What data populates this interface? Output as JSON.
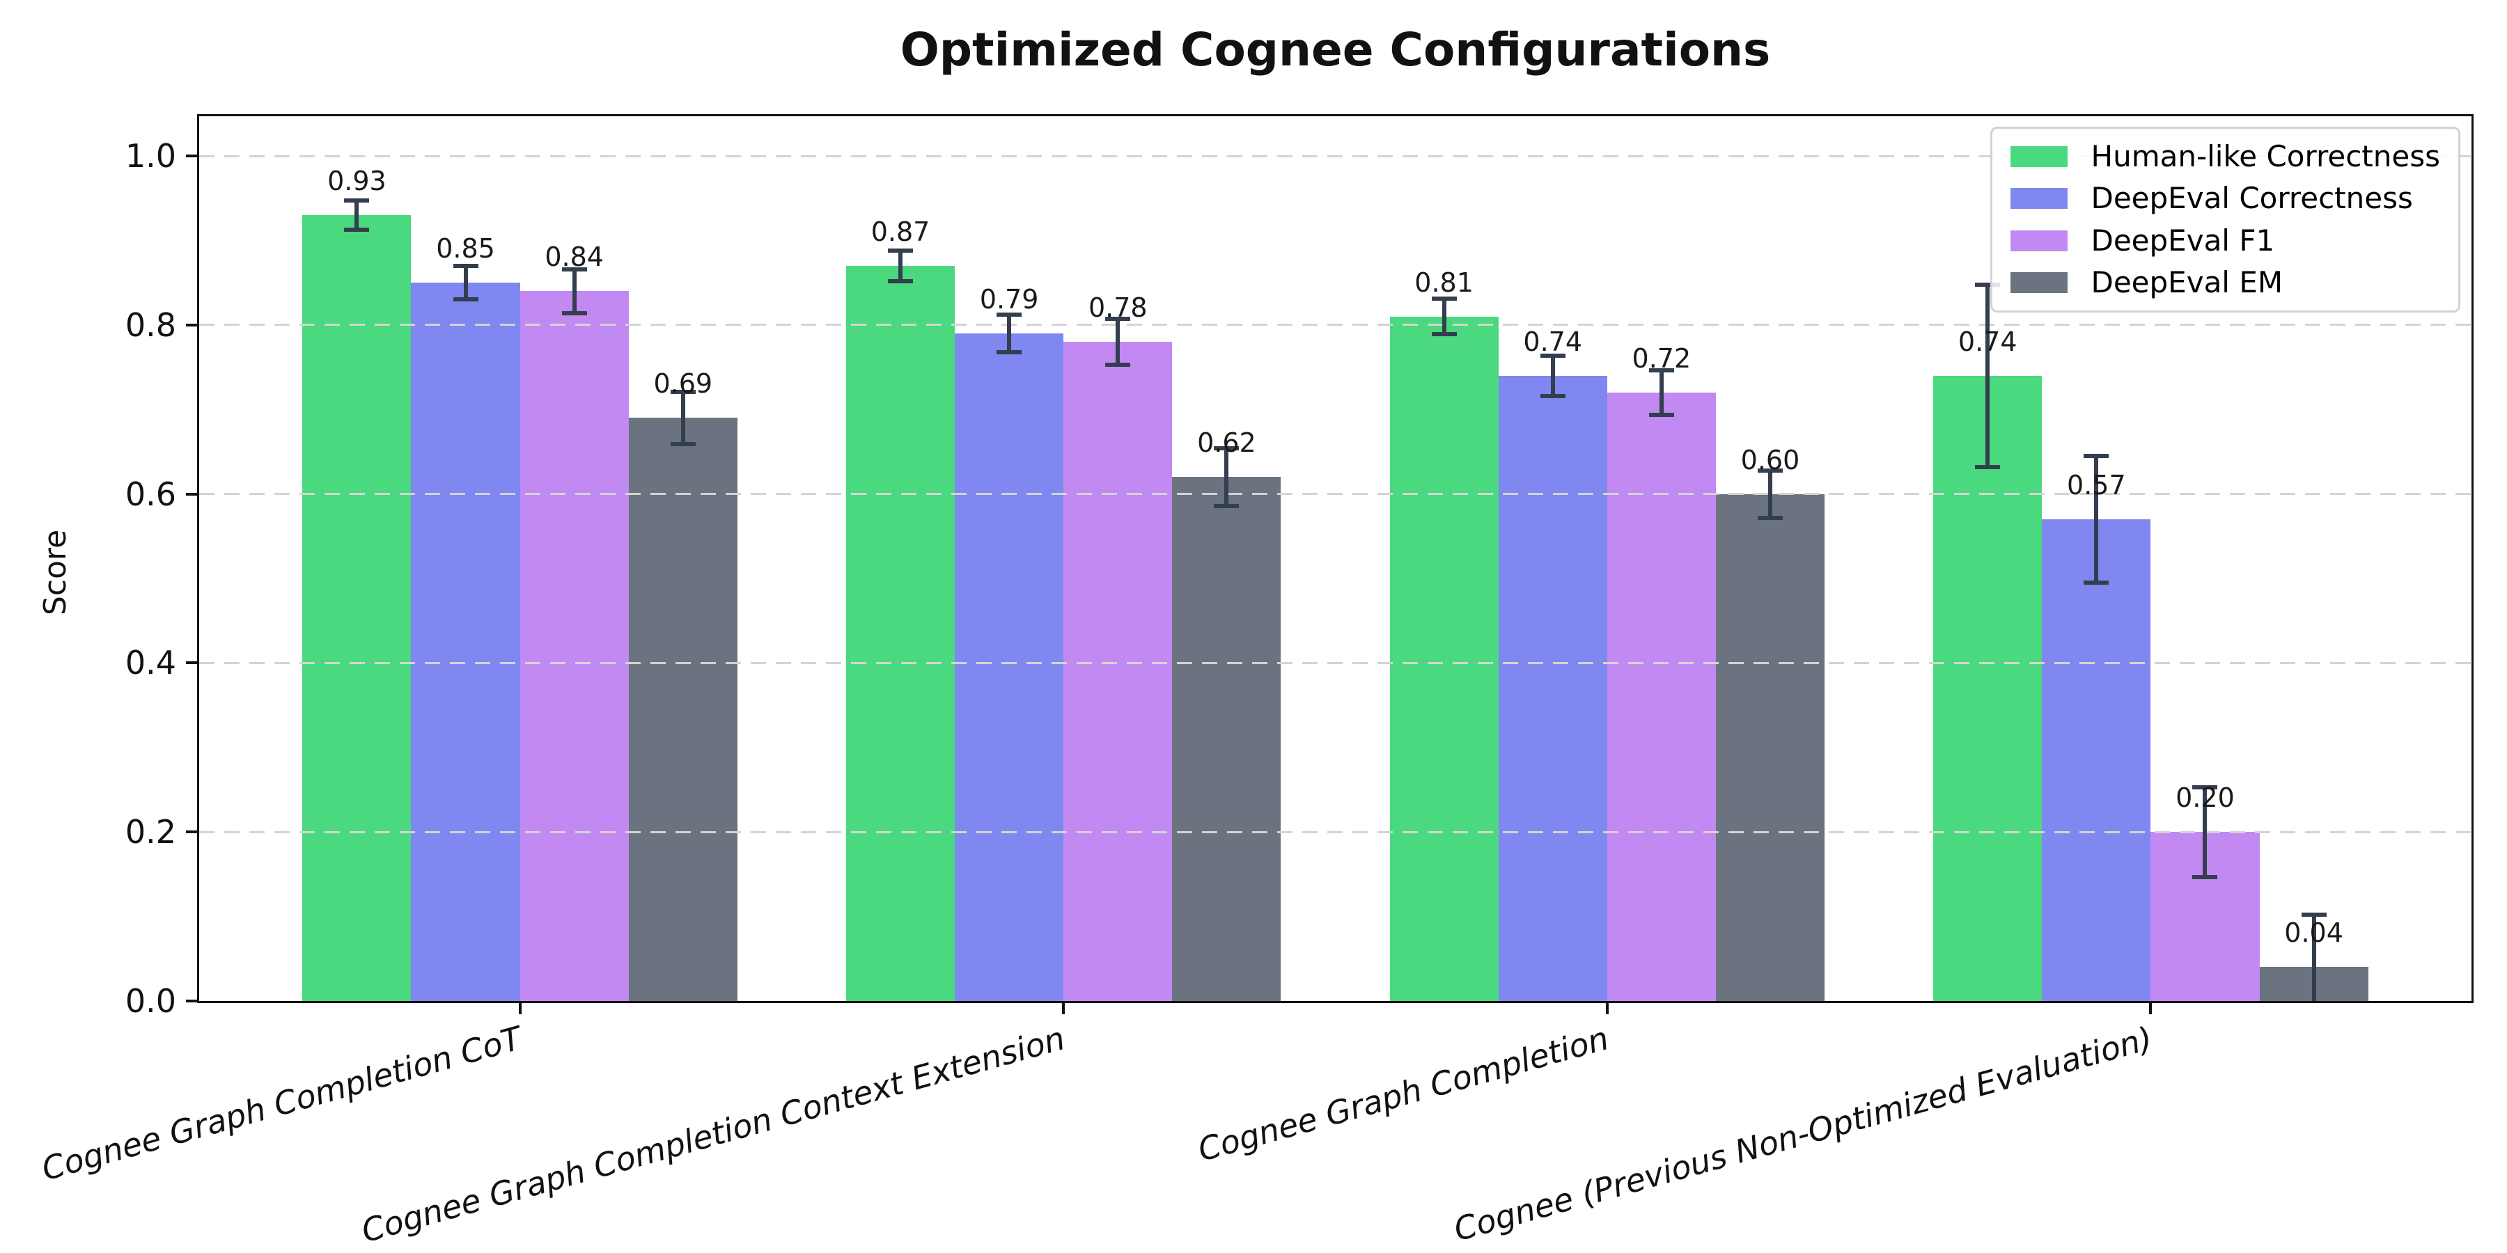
{
  "chart_data": {
    "type": "bar",
    "title": "Optimized Cognee Configurations",
    "ylabel": "Score",
    "xlabel": "",
    "categories": [
      "Cognee Graph Completion CoT",
      "Cognee Graph Completion Context Extension",
      "Cognee Graph Completion",
      "Cognee (Previous Non-Optimized Evaluation)"
    ],
    "series": [
      {
        "name": "Human-like Correctness",
        "color": "#4ad97e",
        "values": [
          0.93,
          0.87,
          0.81,
          0.74
        ],
        "errors": [
          0.017,
          0.018,
          0.021,
          0.108
        ]
      },
      {
        "name": "DeepEval Correctness",
        "color": "#7e88f0",
        "values": [
          0.85,
          0.79,
          0.74,
          0.57
        ],
        "errors": [
          0.02,
          0.022,
          0.024,
          0.075
        ]
      },
      {
        "name": "DeepEval F1",
        "color": "#c289f3",
        "values": [
          0.84,
          0.78,
          0.72,
          0.2
        ],
        "errors": [
          0.026,
          0.027,
          0.026,
          0.053
        ]
      },
      {
        "name": "DeepEval EM",
        "color": "#6b7380",
        "values": [
          0.69,
          0.62,
          0.6,
          0.04
        ],
        "errors": [
          0.031,
          0.034,
          0.028,
          0.062
        ]
      }
    ],
    "value_label_format": "%.2f",
    "ylim": [
      0,
      1.047
    ],
    "yticks": [
      {
        "v": 0.0,
        "label": "0.0"
      },
      {
        "v": 0.2,
        "label": "0.2"
      },
      {
        "v": 0.4,
        "label": "0.4"
      },
      {
        "v": 0.6,
        "label": "0.6"
      },
      {
        "v": 0.8,
        "label": "0.8"
      },
      {
        "v": 1.0,
        "label": "1.0"
      }
    ],
    "grid": {
      "axis": "y",
      "style": "dashed",
      "color": "#d4d4d4",
      "above_bars": true
    },
    "legend_position": "upper right",
    "error_bar_color": "#333e4e",
    "bar_group_width": 0.8
  }
}
